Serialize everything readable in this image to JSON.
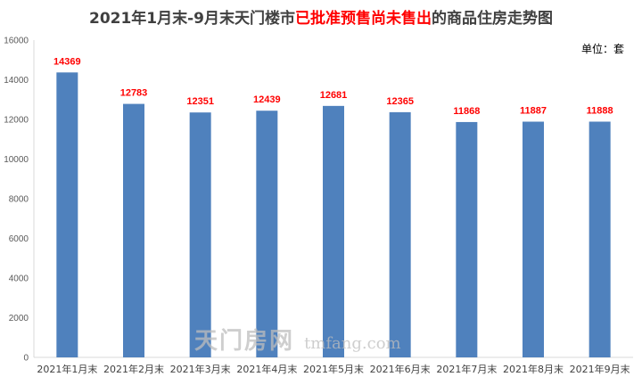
{
  "title": {
    "prefix": "2021年1月末-9月末天门楼市",
    "highlight": "已批准预售尚未售出",
    "suffix": "的商品住房走势图"
  },
  "unit_label": "单位：套",
  "watermark": {
    "brand": "天门房网",
    "site": "tmfang.com"
  },
  "chart_data": {
    "type": "bar",
    "categories": [
      "2021年1月末",
      "2021年2月末",
      "2021年3月末",
      "2021年4月末",
      "2021年5月末",
      "2021年6月末",
      "2021年7月末",
      "2021年8月末",
      "2021年9月末"
    ],
    "values": [
      14369,
      12783,
      12351,
      12439,
      12681,
      12365,
      11868,
      11887,
      11888
    ],
    "ylim": [
      0,
      16000
    ],
    "yticks": [
      0,
      2000,
      4000,
      6000,
      8000,
      10000,
      12000,
      14000,
      16000
    ],
    "grid": false,
    "legend": "none",
    "colors": {
      "bar": "#4f81bd",
      "data_label": "#ff0000",
      "axis": "#d9d9d9",
      "title_highlight": "#ff0000"
    }
  }
}
